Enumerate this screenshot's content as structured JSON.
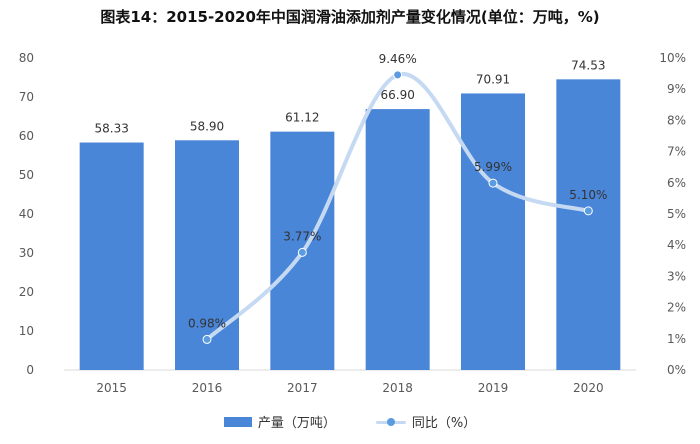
{
  "title": "图表14：2015-2020年中国润滑油添加剂产量变化情况(单位：万吨，%)",
  "chart_data": {
    "type": "bar",
    "categories": [
      "2015",
      "2016",
      "2017",
      "2018",
      "2019",
      "2020"
    ],
    "series": [
      {
        "name": "产量（万吨）",
        "type": "bar",
        "axis": "left",
        "values": [
          58.33,
          58.9,
          61.12,
          66.9,
          70.91,
          74.53
        ],
        "labels": [
          "58.33",
          "58.90",
          "61.12",
          "66.90",
          "70.91",
          "74.53"
        ],
        "color": "#4a86d8"
      },
      {
        "name": "同比（%）",
        "type": "line",
        "axis": "right",
        "values": [
          null,
          0.98,
          3.77,
          9.46,
          5.99,
          5.1
        ],
        "labels": [
          "",
          "0.98%",
          "3.77%",
          "9.46%",
          "5.99%",
          "5.10%"
        ],
        "color": "#c5daf2",
        "marker_color": "#5b9be0"
      }
    ],
    "y_left": {
      "ylim": [
        0,
        80
      ],
      "ticks": [
        "0",
        "10",
        "20",
        "30",
        "40",
        "50",
        "60",
        "70",
        "80"
      ]
    },
    "y_right": {
      "ylim": [
        0,
        10
      ],
      "ticks": [
        "0%",
        "1%",
        "2%",
        "3%",
        "4%",
        "5%",
        "6%",
        "7%",
        "8%",
        "9%",
        "10%"
      ]
    },
    "legend_position": "bottom",
    "grid": false
  }
}
